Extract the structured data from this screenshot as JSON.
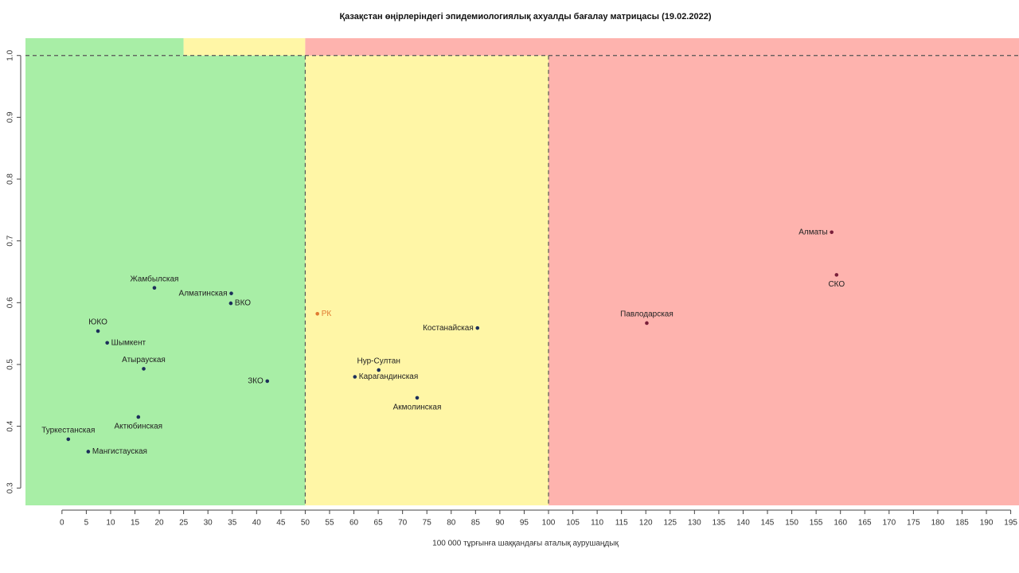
{
  "chart_data": {
    "type": "scatter",
    "title": "Қазақстан өңірлеріндегі эпидемиологиялық ахуалды бағалау матрицасы  (19.02.2022)",
    "x_label": "100 000 тұрғынға шаққандағы аталық аурушаңдық",
    "labels": [
      "Жамбылская",
      "Алматинская",
      "ВКО",
      "ЮКО",
      "Шымкент",
      "Атырауская",
      "ЗКО",
      "Актюбинская",
      "Туркестанская",
      "Мангистауская",
      "РК",
      "Костанайская",
      "Нур-Султан",
      "Карагандинская",
      "Акмолинская",
      "Павлодарская",
      "Алматы",
      "СКО"
    ],
    "x": [
      19.0,
      34.8,
      34.7,
      7.4,
      9.3,
      16.8,
      42.2,
      15.7,
      1.3,
      5.4,
      52.5,
      85.4,
      65.1,
      60.2,
      73.0,
      120.2,
      158.2,
      159.2
    ],
    "y": [
      0.624,
      0.615,
      0.599,
      0.554,
      0.535,
      0.493,
      0.473,
      0.415,
      0.379,
      0.359,
      0.582,
      0.559,
      0.491,
      0.48,
      0.446,
      0.567,
      0.714,
      0.645
    ],
    "point_colors": [
      "#1c2f5a",
      "#1c2f5a",
      "#1c2f5a",
      "#1c2f5a",
      "#1c2f5a",
      "#1c2f5a",
      "#1c2f5a",
      "#1c2f5a",
      "#1c2f5a",
      "#1c2f5a",
      "#e07a30",
      "#1c2f5a",
      "#1c2f5a",
      "#1c2f5a",
      "#1c2f5a",
      "#7a1f3a",
      "#7a1f3a",
      "#7a1f3a"
    ],
    "zones": [
      {
        "x": [
          -7.5,
          50
        ],
        "y": [
          0.272,
          1.0
        ],
        "color": "#a8eea6"
      },
      {
        "x": [
          50,
          100
        ],
        "y": [
          0.272,
          1.0
        ],
        "color": "#fff6a6"
      },
      {
        "x": [
          100,
          196.7
        ],
        "y": [
          0.272,
          1.0
        ],
        "color": "#feb3ae"
      },
      {
        "x": [
          -7.5,
          25
        ],
        "y": [
          1.0,
          1.028
        ],
        "color": "#a8eea6"
      },
      {
        "x": [
          25,
          50
        ],
        "y": [
          1.0,
          1.028
        ],
        "color": "#fff6a6"
      },
      {
        "x": [
          50,
          196.7
        ],
        "y": [
          1.0,
          1.028
        ],
        "color": "#feb3ae"
      }
    ],
    "dashed_x": [
      50,
      100
    ],
    "dashed_y": [
      1.0
    ],
    "xlim": [
      -7.5,
      196.7
    ],
    "ylim": [
      0.272,
      1.028
    ],
    "xticks": [
      0,
      5,
      10,
      15,
      20,
      25,
      30,
      35,
      40,
      45,
      50,
      55,
      60,
      65,
      70,
      75,
      80,
      85,
      90,
      95,
      100,
      105,
      110,
      115,
      120,
      125,
      130,
      135,
      140,
      145,
      150,
      155,
      160,
      165,
      170,
      175,
      180,
      185,
      190,
      195
    ],
    "yticks": [
      0.3,
      0.4,
      0.5,
      0.6,
      0.7,
      0.8,
      0.9,
      {
        "value": 1,
        "label": "1.0"
      }
    ]
  }
}
